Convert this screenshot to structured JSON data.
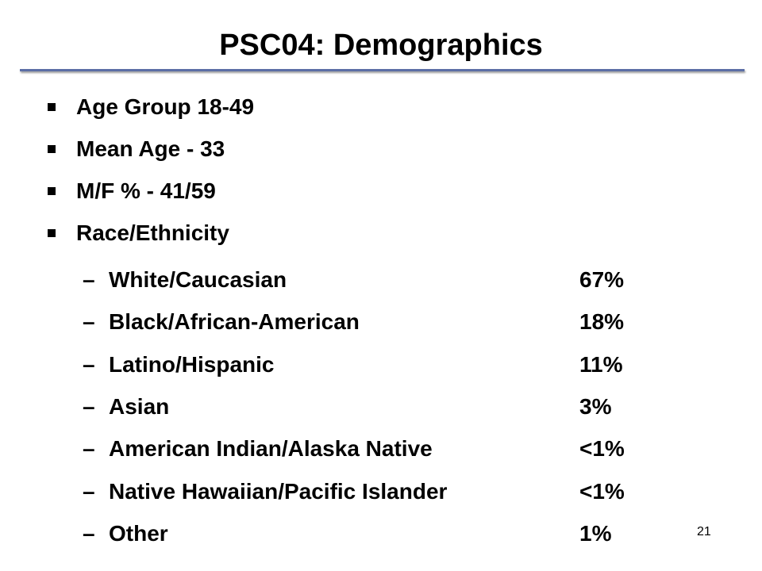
{
  "title": "PSC04: Demographics",
  "bullets": [
    "Age Group 18-49",
    "Mean Age - 33",
    "M/F % - 41/59",
    "Race/Ethnicity"
  ],
  "race": [
    {
      "label": "White/Caucasian",
      "value": "67%"
    },
    {
      "label": "Black/African-American",
      "value": "18%"
    },
    {
      "label": "Latino/Hispanic",
      "value": "11%"
    },
    {
      "label": "Asian",
      "value": "3%"
    },
    {
      "label": "American Indian/Alaska Native",
      "value": "<1%"
    },
    {
      "label": "Native Hawaiian/Pacific Islander",
      "value": "<1%"
    },
    {
      "label": "Other",
      "value": "1%"
    }
  ],
  "page_number": "21"
}
